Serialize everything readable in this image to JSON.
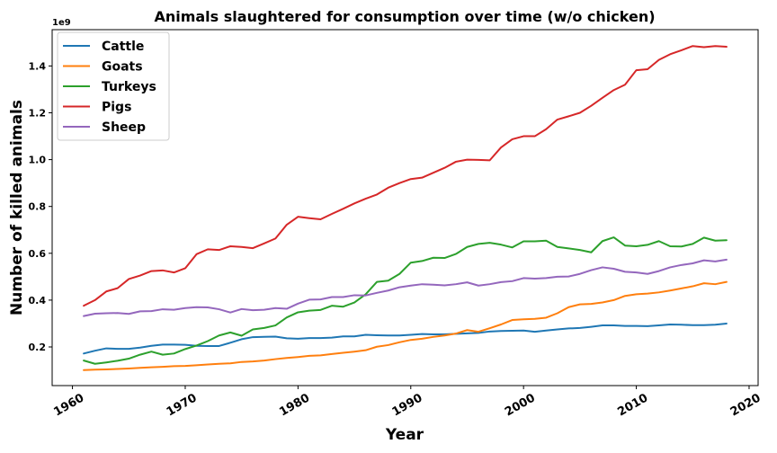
{
  "chart_data": {
    "type": "line",
    "title": "Animals slaughtered for consumption over time (w/o chicken)",
    "xlabel": "Year",
    "ylabel": "Number of killed animals",
    "y_offset_label": "1e9",
    "xlim": [
      1958.2,
      2020.8
    ],
    "ylim": [
      0.035,
      1.555
    ],
    "x_ticks": [
      1960,
      1970,
      1980,
      1990,
      2000,
      2010,
      2020
    ],
    "x_tick_labels": [
      "1960",
      "1970",
      "1980",
      "1990",
      "2000",
      "2010",
      "2020"
    ],
    "y_ticks": [
      0.2,
      0.4,
      0.6,
      0.8,
      1.0,
      1.2,
      1.4
    ],
    "y_tick_labels": [
      "0.2",
      "0.4",
      "0.6",
      "0.8",
      "1.0",
      "1.2",
      "1.4"
    ],
    "grid": false,
    "legend_position": "top-left",
    "x": [
      1961,
      1962,
      1963,
      1964,
      1965,
      1966,
      1967,
      1968,
      1969,
      1970,
      1971,
      1972,
      1973,
      1974,
      1975,
      1976,
      1977,
      1978,
      1979,
      1980,
      1981,
      1982,
      1983,
      1984,
      1985,
      1986,
      1987,
      1988,
      1989,
      1990,
      1991,
      1992,
      1993,
      1994,
      1995,
      1996,
      1997,
      1998,
      1999,
      2000,
      2001,
      2002,
      2003,
      2004,
      2005,
      2006,
      2007,
      2008,
      2009,
      2010,
      2011,
      2012,
      2013,
      2014,
      2015,
      2016,
      2017,
      2018
    ],
    "series": [
      {
        "name": "Cattle",
        "color": "#1f77b4",
        "values": [
          0.172,
          0.184,
          0.194,
          0.192,
          0.192,
          0.197,
          0.205,
          0.21,
          0.21,
          0.209,
          0.205,
          0.204,
          0.204,
          0.218,
          0.233,
          0.242,
          0.243,
          0.244,
          0.237,
          0.235,
          0.238,
          0.238,
          0.24,
          0.245,
          0.245,
          0.252,
          0.25,
          0.249,
          0.249,
          0.252,
          0.255,
          0.254,
          0.254,
          0.256,
          0.258,
          0.26,
          0.266,
          0.268,
          0.269,
          0.27,
          0.265,
          0.27,
          0.275,
          0.279,
          0.281,
          0.286,
          0.292,
          0.292,
          0.29,
          0.29,
          0.289,
          0.292,
          0.296,
          0.295,
          0.293,
          0.293,
          0.295,
          0.3
        ]
      },
      {
        "name": "Goats",
        "color": "#ff7f0e",
        "values": [
          0.101,
          0.103,
          0.104,
          0.106,
          0.108,
          0.111,
          0.113,
          0.115,
          0.118,
          0.119,
          0.122,
          0.125,
          0.128,
          0.13,
          0.136,
          0.138,
          0.142,
          0.148,
          0.153,
          0.157,
          0.162,
          0.164,
          0.17,
          0.175,
          0.18,
          0.186,
          0.201,
          0.208,
          0.22,
          0.23,
          0.235,
          0.243,
          0.249,
          0.257,
          0.272,
          0.265,
          0.28,
          0.296,
          0.315,
          0.318,
          0.32,
          0.325,
          0.344,
          0.37,
          0.382,
          0.384,
          0.39,
          0.4,
          0.418,
          0.425,
          0.428,
          0.433,
          0.441,
          0.45,
          0.459,
          0.472,
          0.468,
          0.478
        ]
      },
      {
        "name": "Turkeys",
        "color": "#2ca02c",
        "values": [
          0.142,
          0.128,
          0.134,
          0.141,
          0.15,
          0.167,
          0.18,
          0.167,
          0.172,
          0.191,
          0.206,
          0.225,
          0.249,
          0.262,
          0.248,
          0.275,
          0.281,
          0.292,
          0.326,
          0.348,
          0.355,
          0.358,
          0.376,
          0.372,
          0.39,
          0.425,
          0.478,
          0.483,
          0.512,
          0.56,
          0.567,
          0.581,
          0.58,
          0.597,
          0.627,
          0.64,
          0.645,
          0.637,
          0.625,
          0.651,
          0.651,
          0.654,
          0.627,
          0.621,
          0.614,
          0.604,
          0.652,
          0.668,
          0.633,
          0.63,
          0.636,
          0.652,
          0.63,
          0.629,
          0.64,
          0.667,
          0.654,
          0.656
        ]
      },
      {
        "name": "Pigs",
        "color": "#d62728",
        "values": [
          0.376,
          0.4,
          0.437,
          0.451,
          0.49,
          0.505,
          0.524,
          0.527,
          0.518,
          0.536,
          0.596,
          0.617,
          0.614,
          0.63,
          0.627,
          0.622,
          0.642,
          0.663,
          0.722,
          0.756,
          0.75,
          0.745,
          0.768,
          0.79,
          0.813,
          0.833,
          0.851,
          0.88,
          0.9,
          0.917,
          0.923,
          0.944,
          0.965,
          0.991,
          1.0,
          0.999,
          0.997,
          1.052,
          1.087,
          1.1,
          1.1,
          1.13,
          1.171,
          1.185,
          1.2,
          1.23,
          1.264,
          1.297,
          1.32,
          1.382,
          1.386,
          1.426,
          1.45,
          1.467,
          1.485,
          1.48,
          1.485,
          1.482
        ]
      },
      {
        "name": "Sheep",
        "color": "#9467bd",
        "values": [
          0.332,
          0.342,
          0.344,
          0.345,
          0.341,
          0.352,
          0.353,
          0.361,
          0.359,
          0.366,
          0.37,
          0.369,
          0.361,
          0.347,
          0.362,
          0.357,
          0.359,
          0.366,
          0.363,
          0.385,
          0.402,
          0.403,
          0.413,
          0.413,
          0.421,
          0.42,
          0.431,
          0.441,
          0.455,
          0.462,
          0.468,
          0.466,
          0.463,
          0.468,
          0.476,
          0.462,
          0.468,
          0.477,
          0.481,
          0.494,
          0.492,
          0.494,
          0.5,
          0.501,
          0.512,
          0.528,
          0.54,
          0.534,
          0.521,
          0.518,
          0.512,
          0.524,
          0.54,
          0.55,
          0.557,
          0.57,
          0.565,
          0.573
        ]
      }
    ]
  }
}
